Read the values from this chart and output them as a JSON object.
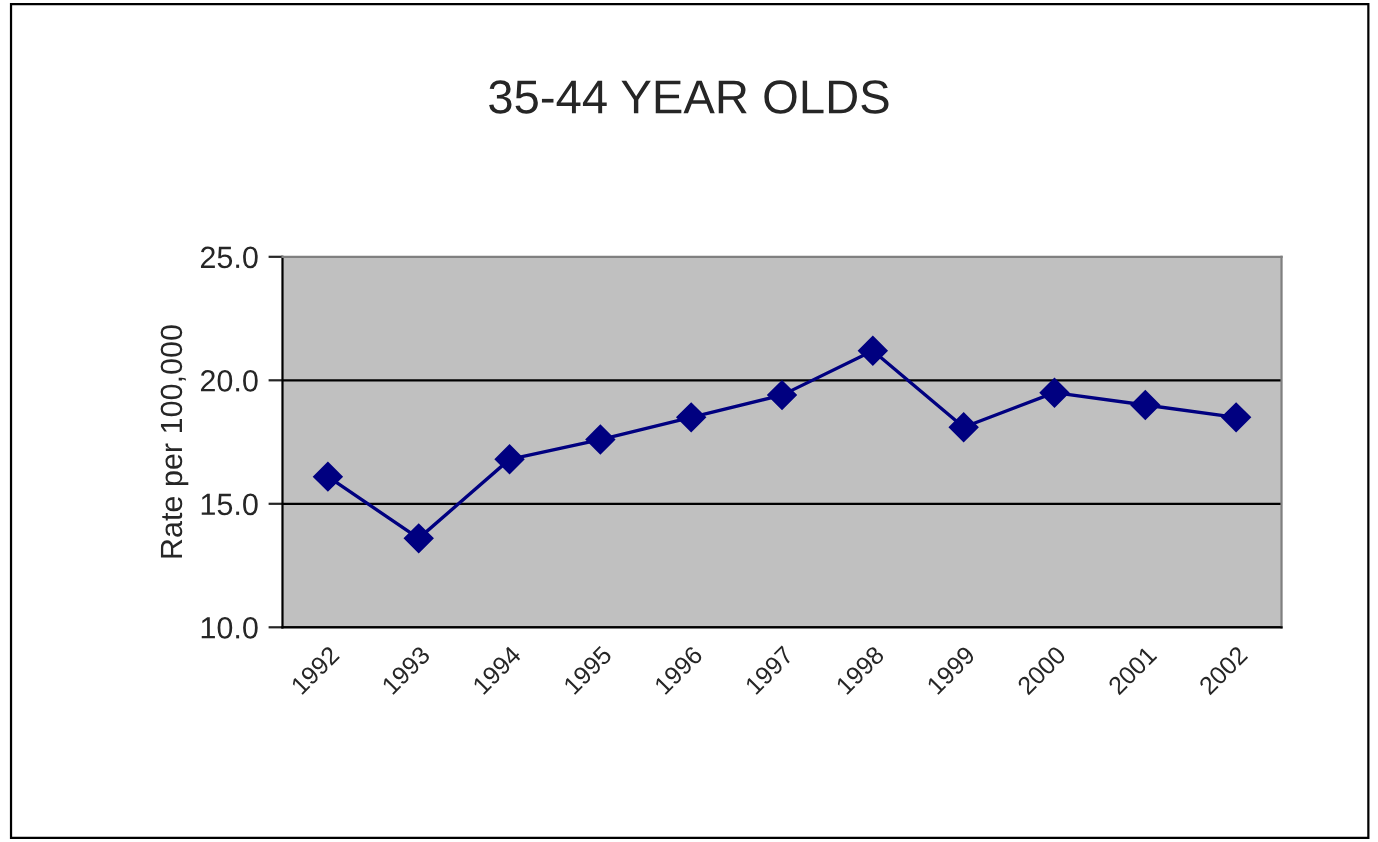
{
  "chart_data": {
    "type": "line",
    "title": "35-44 YEAR OLDS",
    "ylabel": "Rate per 100,000",
    "categories": [
      "1992",
      "1993",
      "1994",
      "1995",
      "1996",
      "1997",
      "1998",
      "1999",
      "2000",
      "2001",
      "2002"
    ],
    "series": [
      {
        "color": "#000080",
        "values": [
          16.1,
          13.6,
          16.8,
          17.6,
          18.5,
          19.4,
          21.2,
          18.1,
          19.5,
          19.0,
          18.5
        ]
      }
    ],
    "ylim": [
      10,
      25
    ],
    "yticks": [
      {
        "value": 10,
        "label": "10.0"
      },
      {
        "value": 15,
        "label": "15.0"
      },
      {
        "value": 20,
        "label": "20.0"
      },
      {
        "value": 25,
        "label": "25.0"
      }
    ],
    "grid": "y",
    "marker": "diamond",
    "line_style": "solid",
    "legend": false
  }
}
